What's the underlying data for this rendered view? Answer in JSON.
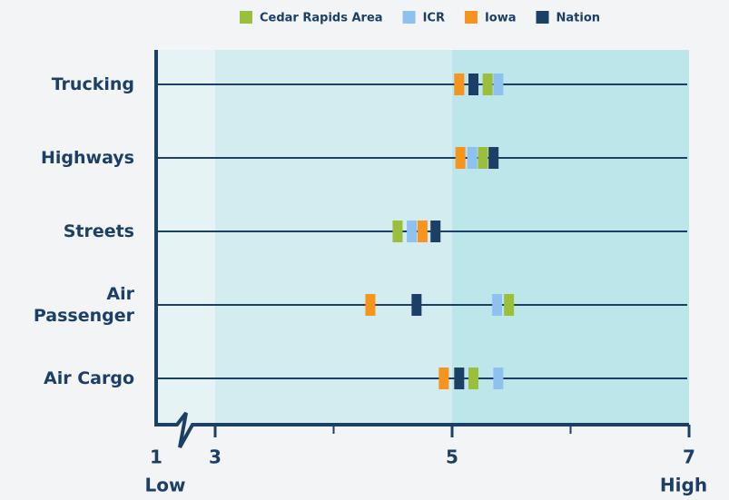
{
  "chart_data": {
    "type": "strip",
    "categories": [
      "Trucking",
      "Highways",
      "Streets",
      "Air Passenger",
      "Air Cargo"
    ],
    "series": [
      {
        "name": "Cedar Rapids Area",
        "color": "#9bbf3b",
        "values": [
          5.3,
          5.26,
          4.54,
          5.48,
          5.18
        ]
      },
      {
        "name": "ICR",
        "color": "#8ec1f0",
        "values": [
          5.39,
          5.17,
          4.66,
          5.38,
          5.39
        ]
      },
      {
        "name": "Iowa",
        "color": "#f7941d",
        "values": [
          5.06,
          5.07,
          4.75,
          4.31,
          4.93
        ]
      },
      {
        "name": "Nation",
        "color": "#1c3f66",
        "values": [
          5.18,
          5.35,
          4.86,
          4.7,
          5.06
        ]
      }
    ],
    "xlim": [
      1,
      7
    ],
    "xticks": [
      1,
      3,
      5,
      7
    ],
    "xticks_minor": [
      4,
      6
    ],
    "axis_break": [
      1,
      3
    ],
    "x_low_label": "Low",
    "x_high_label": "High",
    "bands": [
      {
        "range": [
          1,
          3
        ],
        "color": "#e6f3f5"
      },
      {
        "range": [
          3,
          5
        ],
        "color": "#d2ecf0"
      },
      {
        "range": [
          5,
          7
        ],
        "color": "#bde6eb"
      }
    ]
  }
}
